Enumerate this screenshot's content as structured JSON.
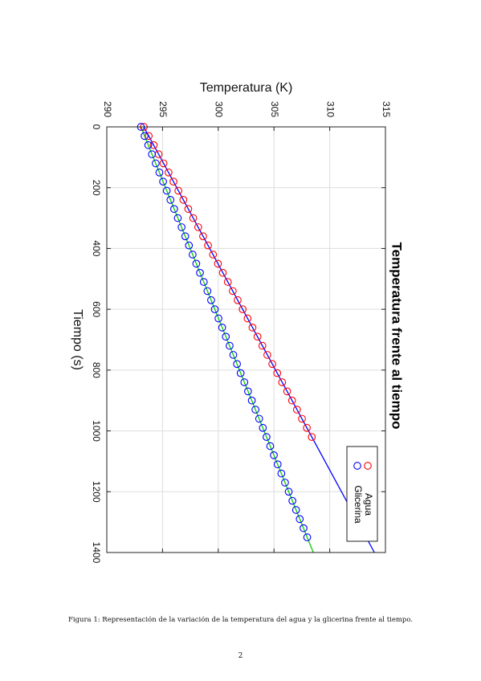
{
  "chart_data": {
    "type": "scatter",
    "title": "Temperatura frente al tiempo",
    "xlabel": "Tiempo (s)",
    "ylabel": "Temperatura (K)",
    "xlim": [
      0,
      1400
    ],
    "ylim": [
      290,
      315
    ],
    "x_ticks": [
      "0",
      "200",
      "400",
      "600",
      "800",
      "1000",
      "1200",
      "1400"
    ],
    "y_ticks": [
      "290",
      "295",
      "300",
      "305",
      "310",
      "315"
    ],
    "grid": true,
    "legend_position": "bottom-right",
    "series": [
      {
        "name": "Agua",
        "marker_color": "#ff0000",
        "fit_color": "#0000ff",
        "fit": {
          "slope": 0.01478,
          "intercept": 293.32,
          "x_range": [
            0,
            1400
          ]
        },
        "x": [
          0,
          30,
          60,
          90,
          120,
          150,
          180,
          210,
          240,
          270,
          300,
          330,
          360,
          390,
          420,
          450,
          480,
          510,
          540,
          570,
          600,
          630,
          660,
          690,
          720,
          750,
          780,
          810,
          840,
          870,
          900,
          930,
          960,
          990,
          1020
        ],
        "y": [
          293.32,
          293.76,
          294.21,
          294.65,
          295.09,
          295.54,
          295.98,
          296.42,
          296.87,
          297.31,
          297.75,
          298.2,
          298.64,
          299.08,
          299.53,
          299.97,
          300.41,
          300.86,
          301.3,
          301.74,
          302.19,
          302.63,
          303.07,
          303.52,
          303.96,
          304.4,
          304.85,
          305.29,
          305.73,
          306.18,
          306.62,
          307.06,
          307.51,
          307.95,
          308.39
        ]
      },
      {
        "name": "Glicerina",
        "marker_color": "#0000ff",
        "fit_color": "#00cc00",
        "fit": {
          "slope": 0.01105,
          "intercept": 293.06,
          "x_range": [
            0,
            1400
          ]
        },
        "x": [
          0,
          30,
          60,
          90,
          120,
          150,
          180,
          210,
          240,
          270,
          300,
          330,
          360,
          390,
          420,
          450,
          480,
          510,
          540,
          570,
          600,
          630,
          660,
          690,
          720,
          750,
          780,
          810,
          840,
          870,
          900,
          930,
          960,
          990,
          1020,
          1050,
          1080,
          1110,
          1140,
          1170,
          1200,
          1230,
          1260,
          1290,
          1320,
          1350
        ],
        "y": [
          293.06,
          293.39,
          293.72,
          294.05,
          294.39,
          294.72,
          295.05,
          295.38,
          295.71,
          296.04,
          296.37,
          296.71,
          297.04,
          297.37,
          297.7,
          298.03,
          298.36,
          298.7,
          299.03,
          299.36,
          299.69,
          300.02,
          300.35,
          300.68,
          301.02,
          301.35,
          301.68,
          302.01,
          302.34,
          302.67,
          303.01,
          303.34,
          303.67,
          304.0,
          304.33,
          304.66,
          304.99,
          305.33,
          305.66,
          305.99,
          306.32,
          306.65,
          306.98,
          307.31,
          307.65,
          307.98
        ]
      }
    ]
  },
  "caption": "Figura 1: Representación de la variación de la temperatura del agua y la glicerina frente al tiempo.",
  "page_number": "2"
}
